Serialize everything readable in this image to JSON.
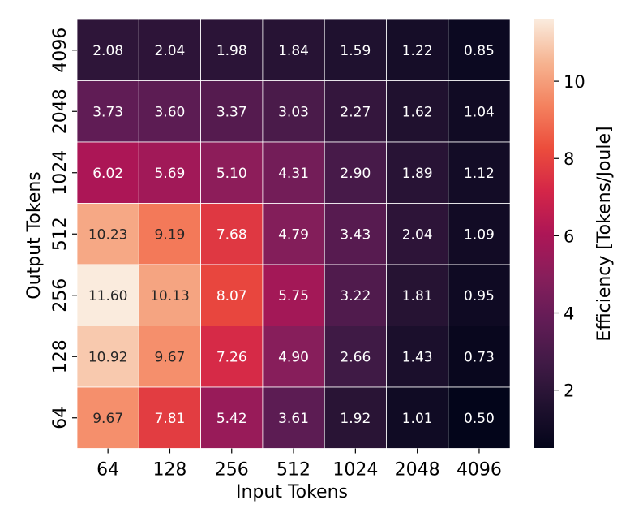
{
  "chart_data": {
    "type": "heatmap",
    "title": "",
    "xlabel": "Input Tokens",
    "ylabel": "Output Tokens",
    "x_categories": [
      "64",
      "128",
      "256",
      "512",
      "1024",
      "2048",
      "4096"
    ],
    "y_categories": [
      "4096",
      "2048",
      "1024",
      "512",
      "256",
      "128",
      "64"
    ],
    "values": [
      [
        2.08,
        2.04,
        1.98,
        1.84,
        1.59,
        1.22,
        0.85
      ],
      [
        3.73,
        3.6,
        3.37,
        3.03,
        2.27,
        1.62,
        1.04
      ],
      [
        6.02,
        5.69,
        5.1,
        4.31,
        2.9,
        1.89,
        1.12
      ],
      [
        10.23,
        9.19,
        7.68,
        4.79,
        3.43,
        2.04,
        1.09
      ],
      [
        11.6,
        10.13,
        8.07,
        5.75,
        3.22,
        1.81,
        0.95
      ],
      [
        10.92,
        9.67,
        7.26,
        4.9,
        2.66,
        1.43,
        0.73
      ],
      [
        9.67,
        7.81,
        5.42,
        3.61,
        1.92,
        1.01,
        0.5
      ]
    ],
    "value_labels": [
      [
        "2.08",
        "2.04",
        "1.98",
        "1.84",
        "1.59",
        "1.22",
        "0.85"
      ],
      [
        "3.73",
        "3.60",
        "3.37",
        "3.03",
        "2.27",
        "1.62",
        "1.04"
      ],
      [
        "6.02",
        "5.69",
        "5.10",
        "4.31",
        "2.90",
        "1.89",
        "1.12"
      ],
      [
        "10.23",
        "9.19",
        "7.68",
        "4.79",
        "3.43",
        "2.04",
        "1.09"
      ],
      [
        "11.60",
        "10.13",
        "8.07",
        "5.75",
        "3.22",
        "1.81",
        "0.95"
      ],
      [
        "10.92",
        "9.67",
        "7.26",
        "4.90",
        "2.66",
        "1.43",
        "0.73"
      ],
      [
        "9.67",
        "7.81",
        "5.42",
        "3.61",
        "1.92",
        "1.01",
        "0.50"
      ]
    ],
    "colorbar": {
      "label": "Efficiency [Tokens/Joule]",
      "vmin": 0.5,
      "vmax": 11.6,
      "ticks": [
        2,
        4,
        6,
        8,
        10
      ],
      "tick_labels": [
        "2",
        "4",
        "6",
        "8",
        "10"
      ],
      "colormap": "rocket"
    }
  }
}
